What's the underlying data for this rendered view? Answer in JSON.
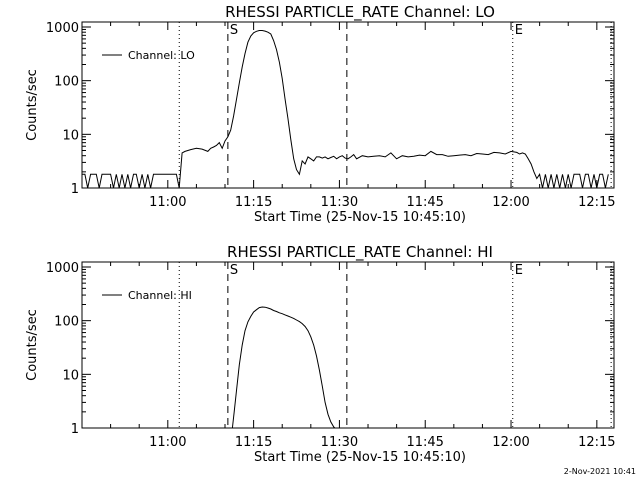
{
  "footer": {
    "timestamp": "2-Nov-2021 10:41"
  },
  "chart_data": [
    {
      "type": "line",
      "title": "RHESSI PARTICLE_RATE Channel: LO",
      "xlabel": "Start Time (25-Nov-15 10:45:10)",
      "ylabel": "Counts/sec",
      "y_scale": "log",
      "ylim": [
        1,
        1000
      ],
      "y_ticks": [
        1,
        10,
        100,
        1000
      ],
      "y_tick_labels": [
        "1",
        "10",
        "100",
        "1000"
      ],
      "xlim_minutes": [
        0,
        93
      ],
      "x_ticks": [
        15,
        30,
        45,
        60,
        75,
        90
      ],
      "x_tick_labels": [
        "11:00",
        "11:15",
        "11:30",
        "11:45",
        "12:00",
        "12:15"
      ],
      "legend": {
        "position": "top-left",
        "label": "Channel: LO"
      },
      "markers": [
        {
          "x": 17,
          "style": "dotted",
          "label": ""
        },
        {
          "x": 25.5,
          "style": "dashed",
          "label": "S"
        },
        {
          "x": 46.3,
          "style": "dashed",
          "label": ""
        },
        {
          "x": 75.3,
          "style": "dotted",
          "label": "E"
        },
        {
          "x": 92.5,
          "style": "dotted",
          "label": ""
        }
      ],
      "series": [
        {
          "name": "Channel: LO",
          "x": [
            0,
            0.5,
            1,
            1.5,
            2,
            2.5,
            3,
            3.5,
            4,
            4.5,
            5,
            5.5,
            6,
            6.5,
            7,
            7.5,
            8,
            8.5,
            9,
            9.5,
            10,
            10.5,
            11,
            11.5,
            12,
            12.5,
            13,
            13.5,
            14,
            14.5,
            15,
            15.5,
            16,
            16.5,
            17,
            17.5,
            18,
            19,
            20,
            21,
            22,
            22.5,
            23,
            23.5,
            24,
            24.5,
            25,
            25.5,
            26,
            26.5,
            27,
            27.5,
            28,
            28.5,
            29,
            29.5,
            30,
            30.5,
            31,
            31.5,
            32,
            32.5,
            33,
            33.5,
            34,
            34.5,
            35,
            35.5,
            36,
            36.5,
            37,
            37.5,
            38,
            38.5,
            39,
            39.5,
            40,
            40.5,
            41,
            41.5,
            42,
            42.5,
            43,
            43.5,
            44,
            44.5,
            45,
            45.5,
            46,
            46.5,
            47,
            47.5,
            48,
            49,
            50,
            51,
            52,
            53,
            54,
            55,
            56,
            57,
            58,
            59,
            60,
            61,
            62,
            63,
            64,
            65,
            66,
            67,
            68,
            69,
            70,
            71,
            72,
            73,
            74,
            75,
            76,
            76.5,
            77,
            77.5,
            78,
            78.5,
            79,
            79.5,
            80,
            80.5,
            81,
            81.5,
            82,
            82.5,
            83,
            83.5,
            84,
            84.5,
            85,
            85.5,
            86,
            86.5,
            87,
            87.5,
            88,
            88.5,
            89,
            89.5,
            90,
            90.5,
            91,
            91.5,
            92
          ],
          "y": [
            1.8,
            1.8,
            1,
            1.8,
            1.8,
            1.8,
            1,
            1.8,
            1.8,
            1.8,
            1.8,
            1,
            1.8,
            1,
            1.8,
            1,
            1.8,
            1,
            1.8,
            1.8,
            1,
            1.8,
            1,
            1.8,
            1,
            1.8,
            1.8,
            1.8,
            1.8,
            1.8,
            1.8,
            1.8,
            1.8,
            1.8,
            1,
            4.5,
            4.8,
            5.2,
            5.5,
            5.3,
            4.8,
            5.5,
            5.8,
            6.2,
            7,
            5.5,
            7.5,
            9,
            12,
            22,
            45,
            90,
            180,
            320,
            520,
            680,
            780,
            830,
            860,
            860,
            840,
            800,
            740,
            560,
            380,
            220,
            110,
            45,
            20,
            8,
            3.5,
            2.2,
            1.8,
            3.2,
            2.8,
            3.8,
            3.5,
            3.2,
            3.8,
            3.8,
            3.6,
            3.8,
            3.5,
            3.7,
            3.9,
            3.5,
            3.8,
            4.0,
            3.6,
            3.5,
            3.8,
            4.2,
            3.5,
            4.0,
            3.8,
            3.9,
            4.0,
            3.8,
            4.5,
            3.5,
            4.0,
            3.8,
            3.9,
            4.1,
            4.0,
            4.8,
            4.2,
            4.2,
            3.9,
            4.0,
            4.1,
            4.2,
            4.0,
            4.4,
            4.3,
            4.2,
            4.6,
            4.5,
            4.3,
            4.8,
            4.6,
            4.3,
            4.5,
            4.3,
            3.5,
            2.8,
            2.0,
            1.5,
            1.8,
            1,
            1.8,
            1,
            1.8,
            1,
            1.8,
            1,
            1.8,
            1,
            1.8,
            1,
            1.8,
            1.8,
            1.8,
            1,
            1.8,
            1.8,
            1,
            1.8,
            1,
            1.8,
            1.8,
            1,
            1.8
          ]
        }
      ]
    },
    {
      "type": "line",
      "title": "RHESSI PARTICLE_RATE Channel: HI",
      "xlabel": "Start Time (25-Nov-15 10:45:10)",
      "ylabel": "Counts/sec",
      "y_scale": "log",
      "ylim": [
        1,
        1000
      ],
      "y_ticks": [
        1,
        10,
        100,
        1000
      ],
      "y_tick_labels": [
        "1",
        "10",
        "100",
        "1000"
      ],
      "xlim_minutes": [
        0,
        93
      ],
      "x_ticks": [
        15,
        30,
        45,
        60,
        75,
        90
      ],
      "x_tick_labels": [
        "11:00",
        "11:15",
        "11:30",
        "11:45",
        "12:00",
        "12:15"
      ],
      "legend": {
        "position": "top-left",
        "label": "Channel: HI"
      },
      "markers": [
        {
          "x": 17,
          "style": "dotted",
          "label": ""
        },
        {
          "x": 25.5,
          "style": "dashed",
          "label": "S"
        },
        {
          "x": 46.3,
          "style": "dashed",
          "label": ""
        },
        {
          "x": 75.3,
          "style": "dotted",
          "label": "E"
        },
        {
          "x": 92.5,
          "style": "dotted",
          "label": ""
        }
      ],
      "series": [
        {
          "name": "Channel: HI",
          "x": [
            26.3,
            26.6,
            27,
            27.5,
            28,
            28.5,
            29,
            29.5,
            30,
            30.5,
            31,
            31.5,
            32,
            32.5,
            33,
            33.5,
            34,
            34.5,
            35,
            35.5,
            36,
            36.5,
            37,
            37.5,
            38,
            38.5,
            39,
            39.5,
            40,
            40.5,
            41,
            41.5,
            42,
            42.5,
            43,
            43.5,
            44,
            44.2
          ],
          "y": [
            1,
            2,
            5,
            15,
            35,
            65,
            95,
            120,
            145,
            160,
            175,
            180,
            178,
            172,
            165,
            155,
            148,
            140,
            135,
            128,
            122,
            116,
            110,
            103,
            96,
            88,
            78,
            65,
            50,
            35,
            22,
            12,
            6,
            3,
            1.8,
            1.3,
            1.05,
            1
          ]
        }
      ]
    }
  ]
}
